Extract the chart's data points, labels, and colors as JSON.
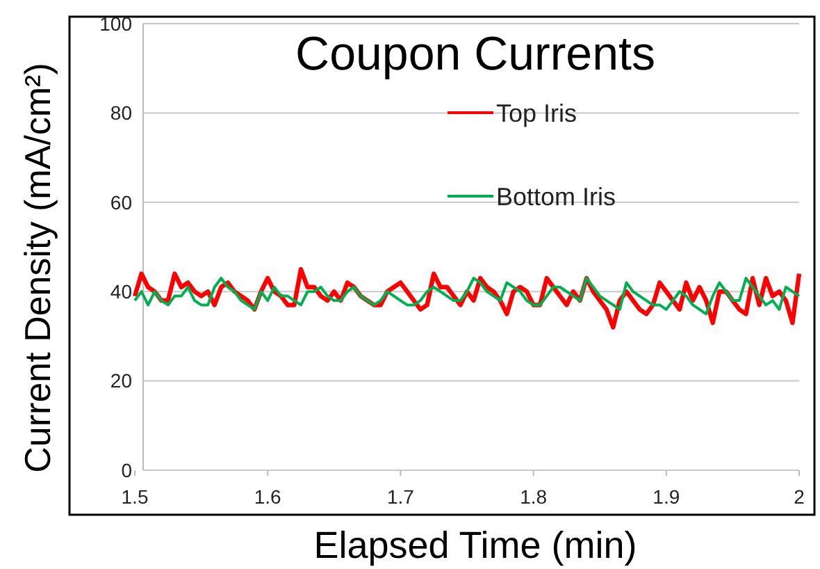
{
  "chart_data": {
    "type": "line",
    "title": "Coupon Currents",
    "xlabel": "Elapsed Time (min)",
    "ylabel": "Current Density (mA/cm²)",
    "x": [
      1.5,
      1.505,
      1.51,
      1.515,
      1.52,
      1.525,
      1.53,
      1.535,
      1.54,
      1.545,
      1.55,
      1.555,
      1.56,
      1.565,
      1.57,
      1.575,
      1.58,
      1.585,
      1.59,
      1.595,
      1.6,
      1.605,
      1.61,
      1.615,
      1.62,
      1.625,
      1.63,
      1.635,
      1.64,
      1.645,
      1.65,
      1.655,
      1.66,
      1.665,
      1.67,
      1.675,
      1.68,
      1.685,
      1.69,
      1.695,
      1.7,
      1.705,
      1.71,
      1.715,
      1.72,
      1.725,
      1.73,
      1.735,
      1.74,
      1.745,
      1.75,
      1.755,
      1.76,
      1.765,
      1.77,
      1.775,
      1.78,
      1.785,
      1.79,
      1.795,
      1.8,
      1.805,
      1.81,
      1.815,
      1.82,
      1.825,
      1.83,
      1.835,
      1.84,
      1.845,
      1.85,
      1.855,
      1.86,
      1.865,
      1.87,
      1.875,
      1.88,
      1.885,
      1.89,
      1.895,
      1.9,
      1.905,
      1.91,
      1.915,
      1.92,
      1.925,
      1.93,
      1.935,
      1.94,
      1.945,
      1.95,
      1.955,
      1.96,
      1.965,
      1.97,
      1.975,
      1.98,
      1.985,
      1.99,
      1.995,
      2
    ],
    "series": [
      {
        "name": "Top Iris",
        "color": "#ff0000",
        "values": [
          39,
          44,
          41,
          40,
          38,
          38,
          44,
          41,
          42,
          40,
          39,
          40,
          37,
          41,
          42,
          40,
          39,
          38,
          36,
          40,
          43,
          40,
          39,
          37,
          37,
          45,
          41,
          41,
          39,
          38,
          40,
          38,
          42,
          41,
          39,
          38,
          37,
          37,
          40,
          41,
          42,
          40,
          38,
          36,
          37,
          44,
          41,
          41,
          39,
          37,
          40,
          38,
          43,
          41,
          40,
          38,
          35,
          40,
          41,
          40,
          37,
          37,
          43,
          41,
          39,
          37,
          40,
          38,
          43,
          40,
          38,
          36,
          32,
          38,
          40,
          38,
          36,
          35,
          37,
          42,
          40,
          38,
          36,
          42,
          38,
          41,
          38,
          33,
          40,
          40,
          38,
          36,
          35,
          43,
          37,
          43,
          39,
          40,
          38,
          33,
          44
        ]
      },
      {
        "name": "Bottom Iris",
        "color": "#00b050",
        "values": [
          38,
          40,
          37,
          40,
          38,
          37,
          39,
          39,
          41,
          38,
          37,
          37,
          41,
          43,
          41,
          40,
          38,
          37,
          36,
          40,
          38,
          41,
          39,
          39,
          38,
          37,
          40,
          40,
          41,
          39,
          38,
          38,
          40,
          41,
          39,
          38,
          37,
          38,
          40,
          39,
          38,
          37,
          37,
          38,
          40,
          41,
          40,
          39,
          38,
          38,
          40,
          43,
          42,
          40,
          39,
          38,
          42,
          41,
          40,
          38,
          37,
          37,
          39,
          41,
          41,
          40,
          39,
          38,
          43,
          41,
          39,
          38,
          37,
          36,
          42,
          40,
          39,
          38,
          37,
          37,
          36,
          38,
          40,
          39,
          37,
          36,
          35,
          39,
          42,
          40,
          38,
          38,
          43,
          41,
          39,
          37,
          38,
          36,
          41,
          40,
          39
        ]
      }
    ],
    "xlim": [
      1.5,
      2
    ],
    "xticks": [
      1.5,
      1.6,
      1.7,
      1.8,
      1.9,
      2
    ],
    "ylim": [
      0,
      100
    ],
    "yticks": [
      0,
      20,
      40,
      60,
      80,
      100
    ],
    "grid": "y",
    "legend": "top right",
    "line_style": "solid",
    "marker": "none"
  }
}
